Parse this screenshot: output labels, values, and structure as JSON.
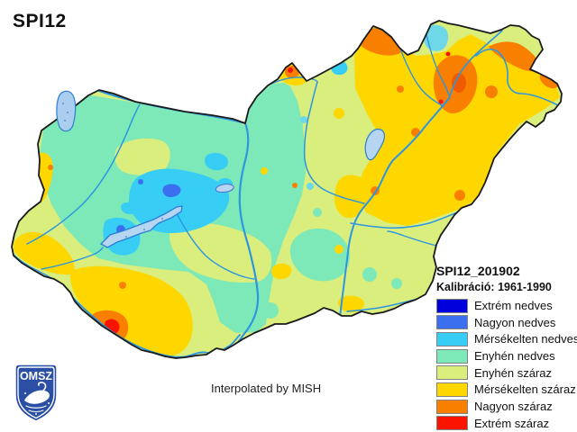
{
  "title": "SPI12",
  "footer_note": "Interpolated by MISH",
  "logo": {
    "text": "OMSZ"
  },
  "legend": {
    "title": "SPI12_201902",
    "calibration": "Kalibráció: 1961-1990",
    "items": [
      {
        "label": "Extrém nedves",
        "color": "#0000dd"
      },
      {
        "label": "Nagyon nedves",
        "color": "#3b6ff0"
      },
      {
        "label": "Mérsékelten nedves",
        "color": "#38cdf5"
      },
      {
        "label": "Enyhén nedves",
        "color": "#7de8b8"
      },
      {
        "label": "Enyhén száraz",
        "color": "#d9ee7d"
      },
      {
        "label": "Mérsékelten száraz",
        "color": "#ffd700"
      },
      {
        "label": "Nagyon száraz",
        "color": "#f97f00"
      },
      {
        "label": "Extrém száraz",
        "color": "#fa1400"
      }
    ]
  },
  "map": {
    "colors": {
      "country_border": "#1a1a1a",
      "river": "#2d96e0",
      "lake_fill": "#b5d5f0",
      "lake_stroke": "#2a7fd4",
      "logo_blue": "#2a4fa5"
    }
  }
}
